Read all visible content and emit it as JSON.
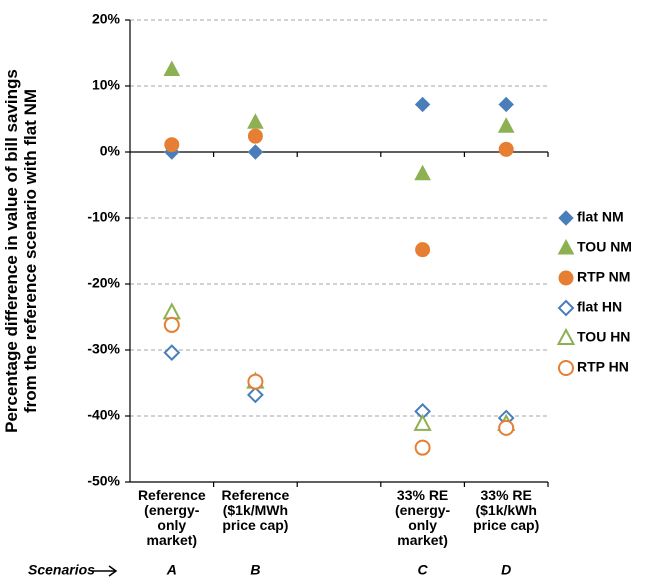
{
  "chart_data": {
    "type": "scatter",
    "ylabel": [
      "Percentage difference in value of bill savings",
      "from the reference scenario with flat NM"
    ],
    "categories": [
      "Reference\n(energy-\nonly\nmarket)",
      "Reference\n($1k/MWh\nprice cap)",
      null,
      "33% RE\n(energy-\nonly\nmarket)",
      "33% RE\n($1k/kWh\nprice cap)"
    ],
    "scenario_label": "Scenarios",
    "scenario_letters": [
      "A",
      "B",
      null,
      "C",
      "D"
    ],
    "ylim": [
      -50,
      20
    ],
    "yticks": [
      {
        "value": -50,
        "label": "-50%"
      },
      {
        "value": -40,
        "label": "-40%"
      },
      {
        "value": -30,
        "label": "-30%"
      },
      {
        "value": -20,
        "label": "-20%"
      },
      {
        "value": -10,
        "label": "-10%"
      },
      {
        "value": 0,
        "label": "0%"
      },
      {
        "value": 10,
        "label": "10%"
      },
      {
        "value": 20,
        "label": "20%"
      }
    ],
    "grid": true,
    "legend": "right",
    "series": [
      {
        "name": "flat NM",
        "color": "#4a7ebb",
        "marker": "diamond",
        "filled": true,
        "values": [
          0,
          0,
          null,
          7.2,
          7.2
        ]
      },
      {
        "name": "TOU NM",
        "color": "#8db052",
        "marker": "triangle",
        "filled": true,
        "values": [
          12.5,
          4.5,
          null,
          -3.3,
          3.9
        ]
      },
      {
        "name": "RTP NM",
        "color": "#e67e33",
        "marker": "circle",
        "filled": true,
        "values": [
          1.1,
          2.4,
          null,
          -14.8,
          0.4
        ]
      },
      {
        "name": "flat HN",
        "color": "#4a7ebb",
        "marker": "diamond",
        "filled": false,
        "values": [
          -30.4,
          -36.8,
          null,
          -39.3,
          -40.3
        ]
      },
      {
        "name": "TOU HN",
        "color": "#8db052",
        "marker": "triangle",
        "filled": false,
        "values": [
          -24.3,
          -34.8,
          null,
          -41.2,
          -41.2
        ]
      },
      {
        "name": "RTP HN",
        "color": "#e67e33",
        "marker": "circle",
        "filled": false,
        "values": [
          -26.2,
          -34.8,
          null,
          -44.8,
          -41.8
        ]
      }
    ]
  }
}
